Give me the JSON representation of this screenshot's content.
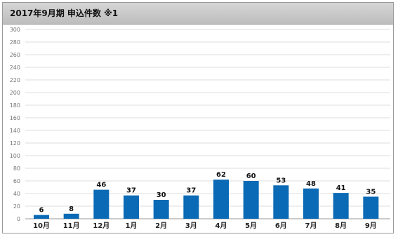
{
  "header": {
    "title": "2017年9月期 申込件数 ※1"
  },
  "chart_data": {
    "type": "bar",
    "title": "2017年9月期 申込件数 ※1",
    "xlabel": "",
    "ylabel": "",
    "categories": [
      "10月",
      "11月",
      "12月",
      "1月",
      "2月",
      "3月",
      "4月",
      "5月",
      "6月",
      "7月",
      "8月",
      "9月"
    ],
    "values": [
      6,
      8,
      46,
      37,
      30,
      37,
      62,
      60,
      53,
      48,
      41,
      35
    ],
    "ylim": [
      0,
      300
    ],
    "yticks": [
      0,
      20,
      40,
      60,
      80,
      100,
      120,
      140,
      160,
      180,
      200,
      220,
      240,
      260,
      280,
      300
    ],
    "grid": true,
    "legend": "none",
    "bar_color": "#0a6ab5",
    "data_labels": true
  }
}
